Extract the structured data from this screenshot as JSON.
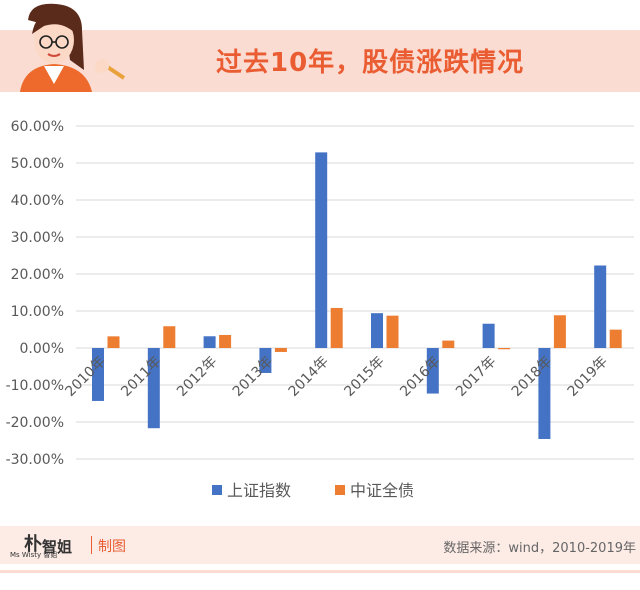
{
  "header": {
    "title": "过去10年，股债涨跌情况"
  },
  "chart_data": {
    "type": "bar",
    "categories": [
      "2010年",
      "2011年",
      "2012年",
      "2013年",
      "2014年",
      "2015年",
      "2016年",
      "2017年",
      "2018年",
      "2019年"
    ],
    "series": [
      {
        "name": "上证指数",
        "color": "#4472c4",
        "values": [
          -14.31,
          -21.68,
          3.17,
          -6.75,
          52.87,
          9.41,
          -12.31,
          6.56,
          -24.59,
          22.3
        ]
      },
      {
        "name": "中证全债",
        "color": "#ed7d31",
        "values": [
          3.15,
          5.88,
          3.52,
          -1.07,
          10.82,
          8.74,
          2.0,
          -0.34,
          8.85,
          4.96
        ]
      }
    ],
    "ylim": [
      -30,
      60
    ],
    "yticks": [
      "-30.00%",
      "-20.00%",
      "-10.00%",
      "0.00%",
      "10.00%",
      "20.00%",
      "30.00%",
      "40.00%",
      "50.00%",
      "60.00%"
    ],
    "grid": true,
    "legend_position": "bottom"
  },
  "footer": {
    "logo_text": "Ms Wisty 智姐",
    "label": "制图",
    "source": "数据来源：wind，2010-2019年"
  }
}
